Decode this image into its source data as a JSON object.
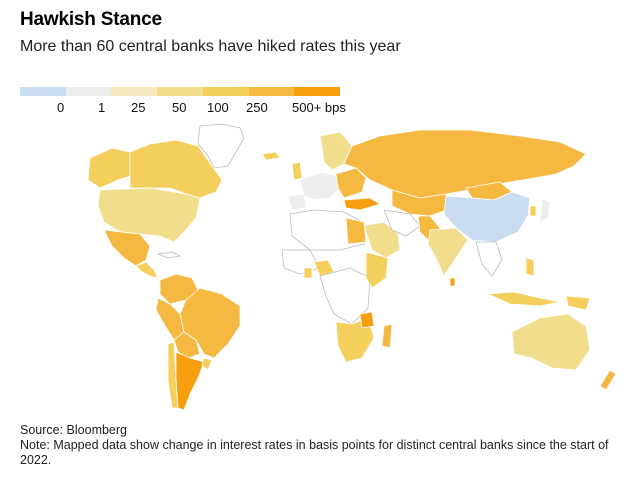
{
  "header": {
    "title": "Hawkish Stance",
    "subtitle": "More than 60 central banks have hiked rates this year"
  },
  "legend": {
    "colors": [
      "#c9dcf0",
      "#eeeeee",
      "#f6ebc0",
      "#f1de8c",
      "#f4cf5c",
      "#f5b941",
      "#f79e0f"
    ],
    "labels": [
      "0",
      "1",
      "25",
      "50",
      "100",
      "250",
      "500+ bps"
    ]
  },
  "map": {
    "fill_colors": {
      "decrease": "#c9dcf0",
      "none": "#ffffff",
      "small": "#eeeeee",
      "low": "#f1de8c",
      "mid": "#f4cf5c",
      "high": "#f5b941",
      "max": "#f79e0f"
    }
  },
  "footer": {
    "source": "Source: Bloomberg",
    "note": "Note: Mapped data show change in interest rates in basis points for distinct central banks since the start of 2022."
  }
}
